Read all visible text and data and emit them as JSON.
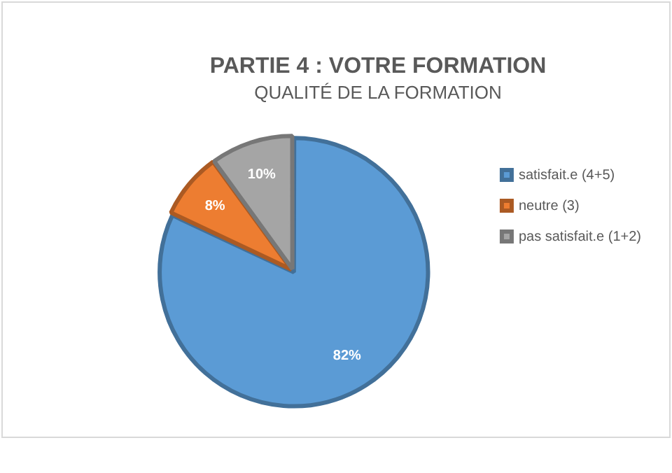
{
  "chart_data": {
    "type": "pie",
    "title": "PARTIE 4 : VOTRE FORMATION",
    "subtitle": "QUALITÉ DE LA FORMATION",
    "categories": [
      "satisfait.e (4+5)",
      "neutre (3)",
      "pas satisfait.e (1+2)"
    ],
    "values": [
      82,
      8,
      10
    ],
    "colors": [
      "#5b9bd5",
      "#ed7d31",
      "#a5a5a5"
    ],
    "value_labels": [
      "82%",
      "8%",
      "10%"
    ],
    "legend": "right"
  }
}
